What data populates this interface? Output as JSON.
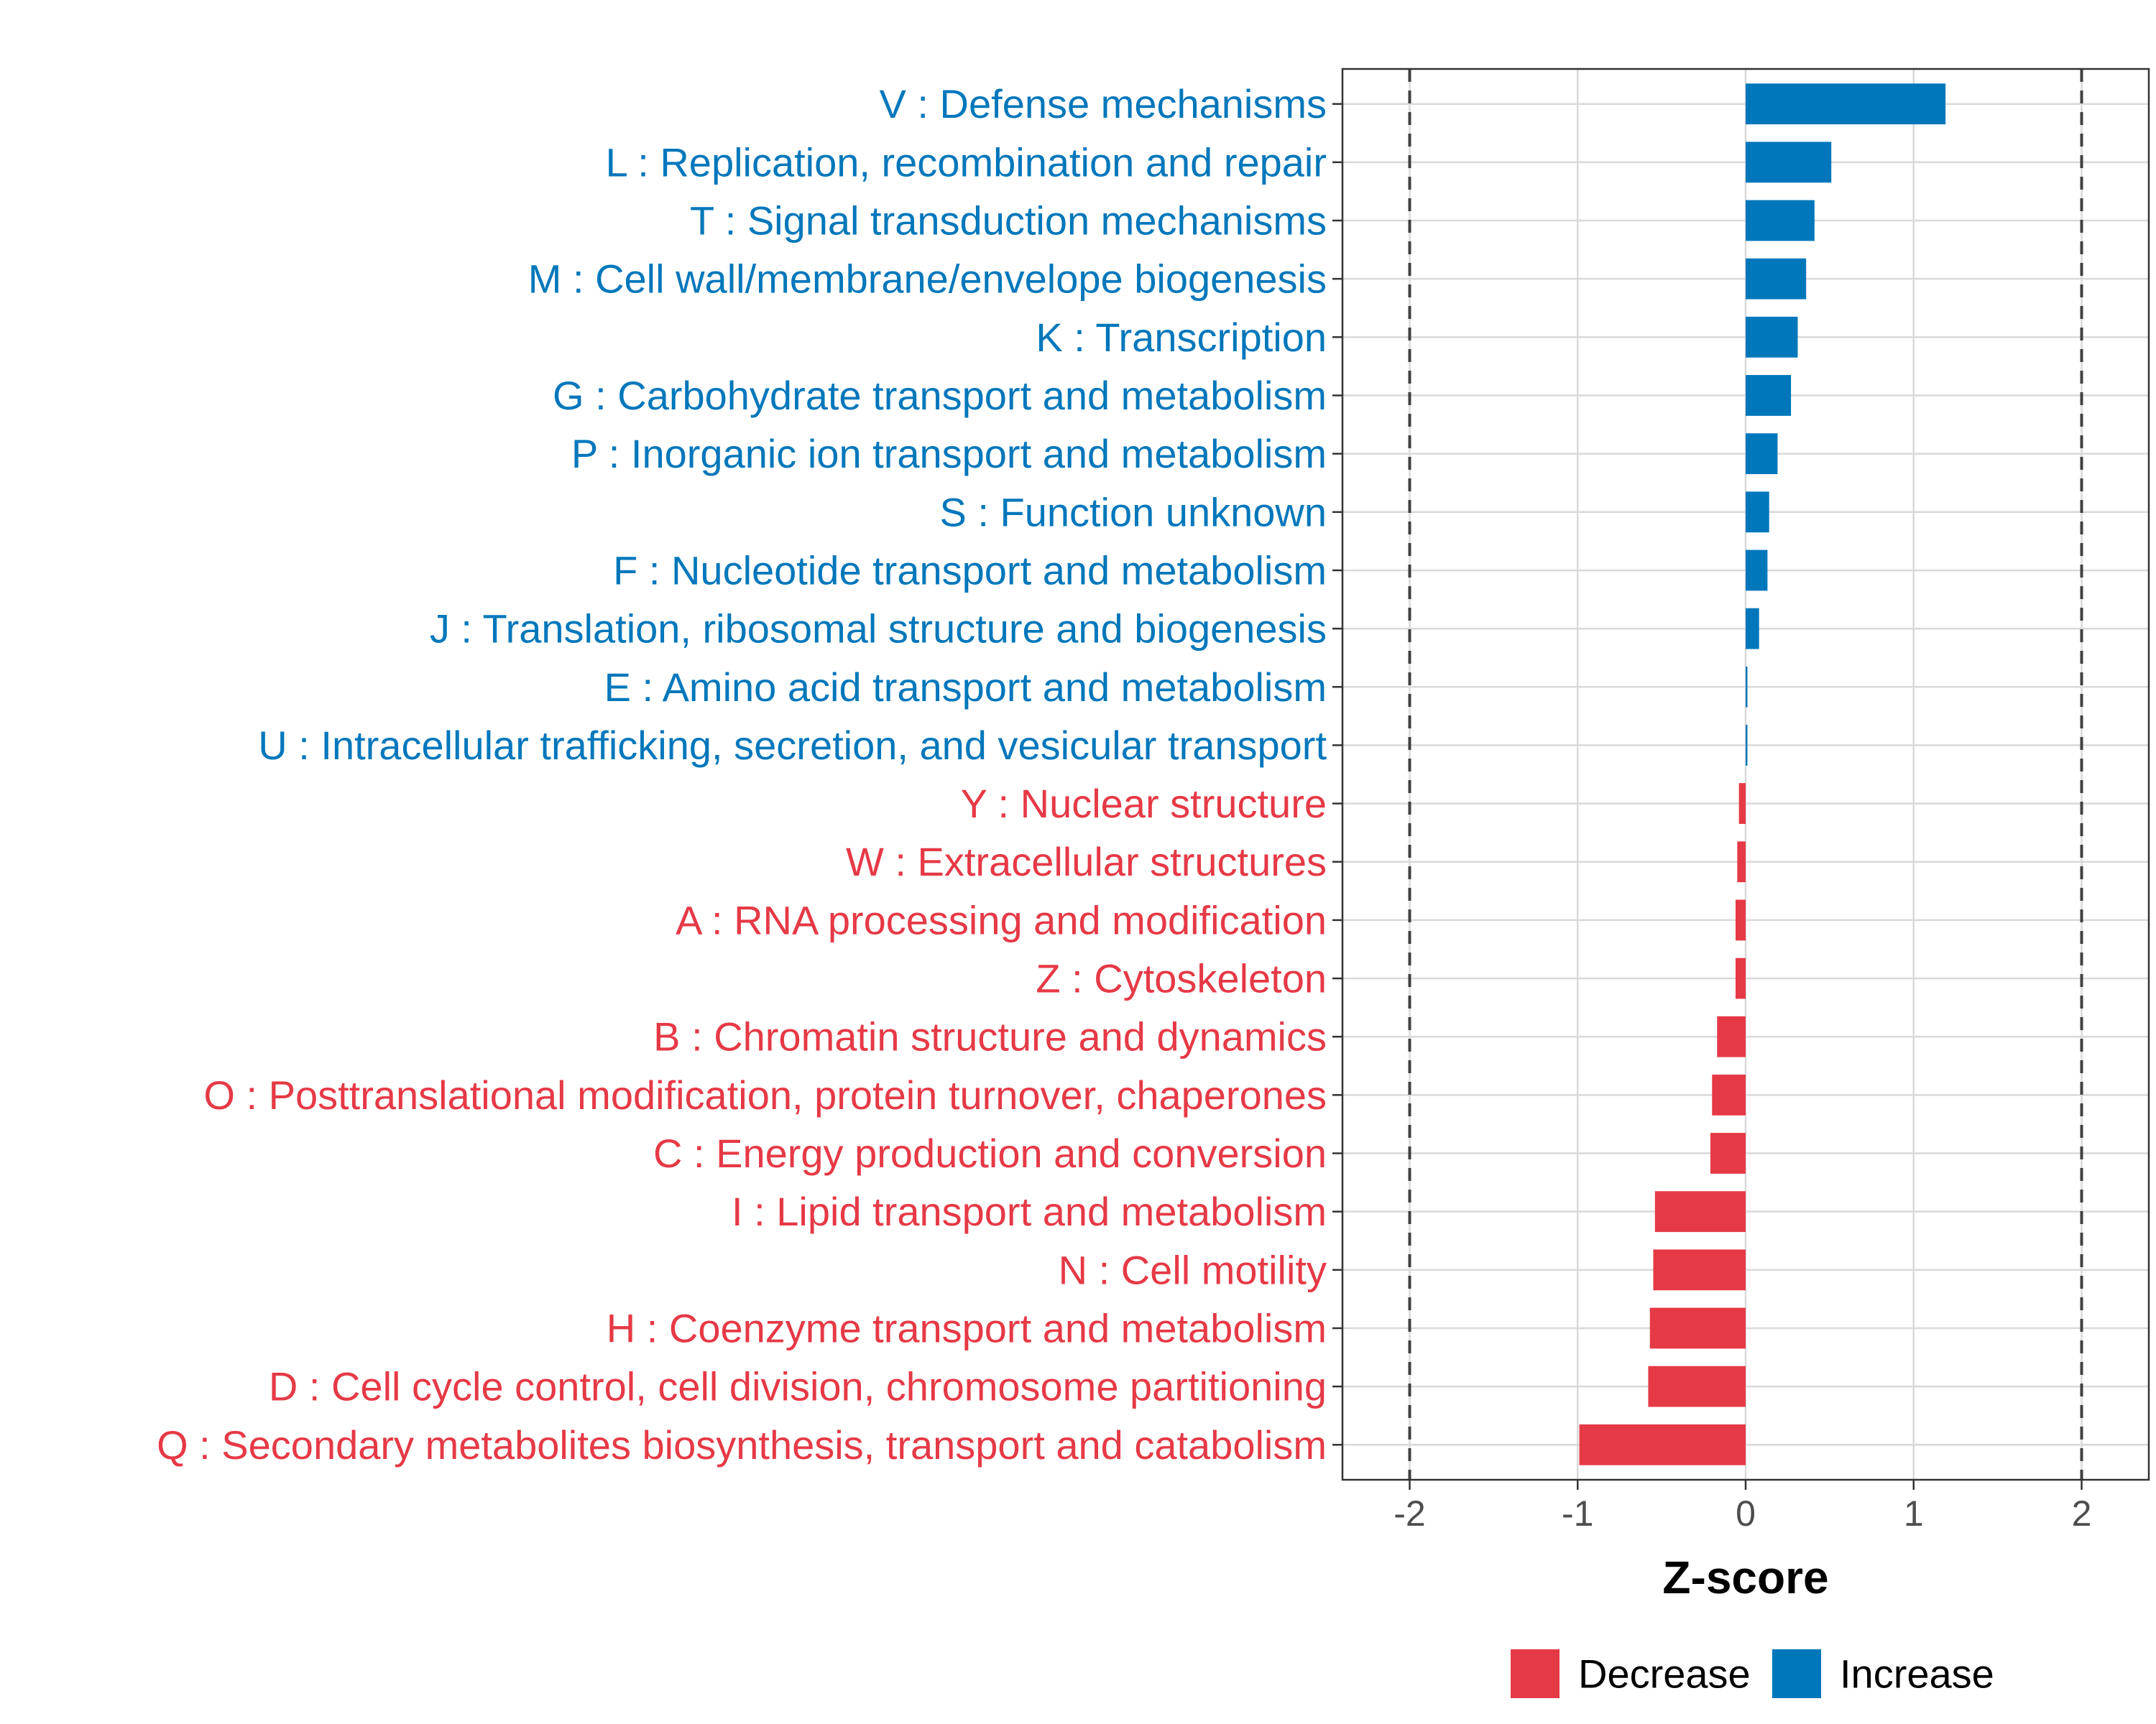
{
  "chart_data": {
    "type": "bar",
    "orientation": "horizontal",
    "xlabel": "Z-score",
    "xlim": [
      -2.4,
      2.4
    ],
    "xticks": [
      -2,
      -1,
      0,
      1,
      2
    ],
    "xtick_labels": [
      "-2",
      "-1",
      "0",
      "1",
      "2"
    ],
    "reference_lines": [
      -2,
      2
    ],
    "grid": true,
    "legend_position": "bottom",
    "legend": [
      {
        "name": "Decrease",
        "color": "#E63946"
      },
      {
        "name": "Increase",
        "color": "#0077BB"
      }
    ],
    "colors": {
      "Increase": "#0077BB",
      "Decrease": "#E63946"
    },
    "categories": [
      "V : Defense mechanisms",
      "L : Replication, recombination and repair",
      "T : Signal transduction mechanisms",
      "M : Cell wall/membrane/envelope biogenesis",
      "K : Transcription",
      "G : Carbohydrate transport and metabolism",
      "P : Inorganic ion transport and metabolism",
      "S : Function unknown",
      "F : Nucleotide transport and metabolism",
      "J : Translation, ribosomal structure and biogenesis",
      "E : Amino acid transport and metabolism",
      "U : Intracellular trafficking, secretion, and vesicular transport",
      "Y : Nuclear structure",
      "W : Extracellular structures",
      "A : RNA processing and modification",
      "Z : Cytoskeleton",
      "B : Chromatin structure and dynamics",
      "O : Posttranslational modification, protein turnover, chaperones",
      "C : Energy production and conversion",
      "I : Lipid transport and metabolism",
      "N : Cell motility",
      "H : Coenzyme transport and metabolism",
      "D : Cell cycle control, cell division, chromosome partitioning",
      "Q : Secondary metabolites biosynthesis, transport and catabolism"
    ],
    "values": [
      1.19,
      0.51,
      0.41,
      0.36,
      0.31,
      0.27,
      0.19,
      0.14,
      0.13,
      0.08,
      0.01,
      0.01,
      -0.04,
      -0.05,
      -0.06,
      -0.06,
      -0.17,
      -0.2,
      -0.21,
      -0.54,
      -0.55,
      -0.57,
      -0.58,
      -0.99
    ],
    "groups": [
      "Increase",
      "Increase",
      "Increase",
      "Increase",
      "Increase",
      "Increase",
      "Increase",
      "Increase",
      "Increase",
      "Increase",
      "Increase",
      "Increase",
      "Decrease",
      "Decrease",
      "Decrease",
      "Decrease",
      "Decrease",
      "Decrease",
      "Decrease",
      "Decrease",
      "Decrease",
      "Decrease",
      "Decrease",
      "Decrease"
    ]
  }
}
